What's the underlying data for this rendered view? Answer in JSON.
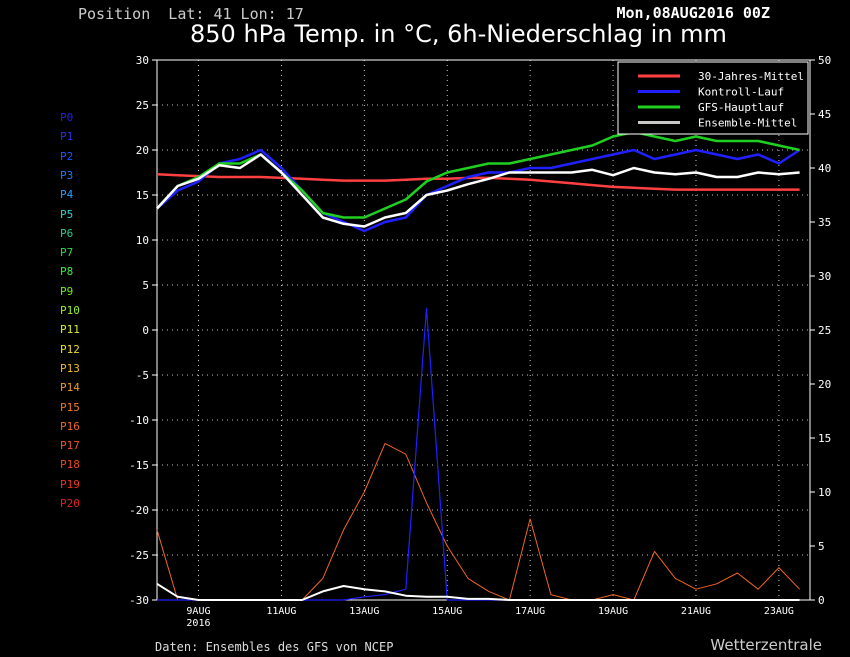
{
  "header": {
    "position": "Position  Lat: 41 Lon: 17",
    "run": "Mon,08AUG2016 00Z",
    "title": "850 hPa Temp. in °C, 6h-Niederschlag in mm"
  },
  "footer": {
    "source": "Daten: Ensembles des GFS von NCEP",
    "brand": "Wetterzentrale"
  },
  "members": [
    {
      "name": "P0",
      "color": "#2222dd"
    },
    {
      "name": "P1",
      "color": "#2233ee"
    },
    {
      "name": "P2",
      "color": "#2255ff"
    },
    {
      "name": "P3",
      "color": "#2277ff"
    },
    {
      "name": "P4",
      "color": "#22a0ff"
    },
    {
      "name": "P5",
      "color": "#33cccc"
    },
    {
      "name": "P6",
      "color": "#22cc88"
    },
    {
      "name": "P7",
      "color": "#22dd44"
    },
    {
      "name": "P8",
      "color": "#33ee33"
    },
    {
      "name": "P9",
      "color": "#66ee22"
    },
    {
      "name": "P10",
      "color": "#99ee22"
    },
    {
      "name": "P11",
      "color": "#ddee22"
    },
    {
      "name": "P12",
      "color": "#eedd22"
    },
    {
      "name": "P13",
      "color": "#eebb22"
    },
    {
      "name": "P14",
      "color": "#ee9922"
    },
    {
      "name": "P15",
      "color": "#ee7722"
    },
    {
      "name": "P16",
      "color": "#ee6622"
    },
    {
      "name": "P17",
      "color": "#ee5522"
    },
    {
      "name": "P18",
      "color": "#ee4422"
    },
    {
      "name": "P19",
      "color": "#ee3322"
    },
    {
      "name": "P20",
      "color": "#dd2222"
    }
  ],
  "chart_data": {
    "type": "line",
    "grid": true,
    "legend_position": "top-right",
    "x_ticks": [
      {
        "day": 1,
        "label": "9AUG"
      },
      {
        "day": 3,
        "label": "11AUG"
      },
      {
        "day": 5,
        "label": "13AUG"
      },
      {
        "day": 7,
        "label": "15AUG"
      },
      {
        "day": 9,
        "label": "17AUG"
      },
      {
        "day": 11,
        "label": "19AUG"
      },
      {
        "day": 13,
        "label": "21AUG"
      },
      {
        "day": 15,
        "label": "23AUG"
      }
    ],
    "x_year_label": "2016",
    "xlim_days": [
      0,
      15.75
    ],
    "y_left": {
      "min": -30,
      "max": 30,
      "ticks": [
        30,
        25,
        20,
        15,
        10,
        5,
        0,
        -5,
        -10,
        -15,
        -20,
        -25,
        -30
      ]
    },
    "y_right": {
      "min": 0,
      "max": 50,
      "ticks": [
        50,
        45,
        40,
        35,
        30,
        25,
        20,
        15,
        10,
        5,
        0
      ]
    },
    "legend": [
      {
        "name": "30-Jahres-Mittel",
        "color": "#ff4040"
      },
      {
        "name": "Kontroll-Lauf",
        "color": "#2020ff"
      },
      {
        "name": "GFS-Hauptlauf",
        "color": "#20d020"
      },
      {
        "name": "Ensemble-Mittel",
        "color": "#c8c8c8"
      }
    ],
    "x_days": [
      0,
      0.5,
      1,
      1.5,
      2,
      2.5,
      3,
      3.5,
      4,
      4.5,
      5,
      5.5,
      6,
      6.5,
      7,
      7.5,
      8,
      8.5,
      9,
      9.5,
      10,
      10.5,
      11,
      11.5,
      12,
      12.5,
      13,
      13.5,
      14,
      14.5,
      15,
      15.5
    ],
    "climatology": [
      17.3,
      17.2,
      17.1,
      17,
      17,
      17,
      16.9,
      16.8,
      16.7,
      16.6,
      16.6,
      16.6,
      16.7,
      16.8,
      16.8,
      16.9,
      16.9,
      16.8,
      16.7,
      16.5,
      16.3,
      16.1,
      15.9,
      15.8,
      15.7,
      15.6,
      15.6,
      15.6,
      15.6,
      15.6,
      15.6,
      15.6
    ],
    "control_run": [
      13.5,
      15.5,
      16.5,
      18.5,
      19,
      20,
      18,
      15.5,
      13,
      12,
      11,
      12,
      12.5,
      15,
      16,
      17,
      17.5,
      17.5,
      18,
      18,
      18.5,
      19,
      19.5,
      20,
      19,
      19.5,
      20,
      19.5,
      19,
      19.5,
      18.5,
      20
    ],
    "main_run": [
      13.5,
      16,
      17,
      18.5,
      18.5,
      19.5,
      17.5,
      15.5,
      13,
      12.5,
      12.5,
      13.5,
      14.5,
      16.5,
      17.5,
      18,
      18.5,
      18.5,
      19,
      19.5,
      20,
      20.5,
      21.5,
      22,
      21.5,
      21,
      21.5,
      21,
      21,
      21,
      20.5,
      20
    ],
    "ensemble_mean": [
      13.5,
      16,
      16.8,
      18.3,
      18,
      19.5,
      17.5,
      15,
      12.5,
      11.8,
      11.5,
      12.5,
      13,
      15,
      15.5,
      16.2,
      16.8,
      17.5,
      17.5,
      17.5,
      17.5,
      17.8,
      17.2,
      18,
      17.5,
      17.3,
      17.5,
      17,
      17,
      17.5,
      17.3,
      17.5
    ],
    "precip_mean_mm": [
      1.5,
      0.3,
      0,
      0,
      0,
      0,
      0,
      0,
      0.8,
      1.3,
      1,
      0.8,
      0.4,
      0.3,
      0.3,
      0.1,
      0.1,
      0,
      0,
      0,
      0,
      0,
      0,
      0,
      0,
      0,
      0,
      0,
      0,
      0,
      0,
      0
    ],
    "precip_control_mm": [
      0,
      0,
      0,
      0,
      0,
      0,
      0,
      0,
      0,
      0,
      0.3,
      0.5,
      1,
      27,
      0,
      0,
      0,
      0,
      0,
      0,
      0,
      0,
      0,
      0,
      0,
      0,
      0,
      0,
      0,
      0,
      0,
      0
    ],
    "precip_max_member_mm": [
      6.5,
      0,
      0,
      0,
      0,
      0,
      0,
      0,
      2,
      6.5,
      10,
      14.5,
      13.5,
      9,
      5,
      2,
      0.8,
      0,
      7.5,
      0.5,
      0,
      0,
      0.5,
      0,
      4.5,
      2,
      1,
      1.5,
      2.5,
      1,
      3,
      1
    ]
  }
}
